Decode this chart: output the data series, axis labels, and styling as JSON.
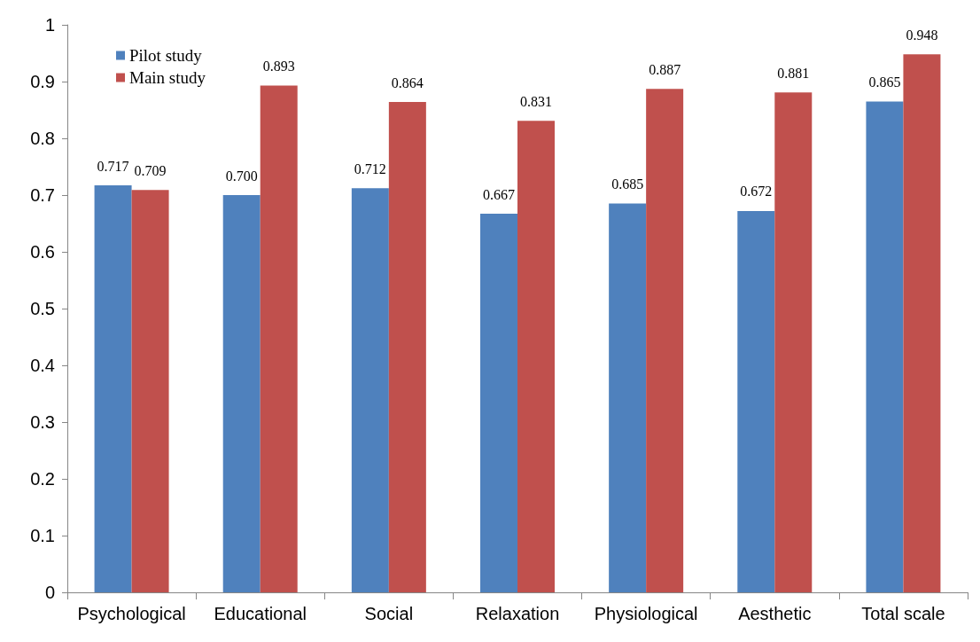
{
  "chart_data": {
    "type": "bar",
    "categories": [
      "Psychological",
      "Educational",
      "Social",
      "Relaxation",
      "Physiological",
      "Aesthetic",
      "Total scale"
    ],
    "series": [
      {
        "name": "Pilot study",
        "color": "#4f81bd",
        "values": [
          0.717,
          0.7,
          0.712,
          0.667,
          0.685,
          0.672,
          0.865
        ],
        "value_labels": [
          "0.717",
          "0.700",
          "0.712",
          "0.667",
          "0.685",
          "0.672",
          "0.865"
        ]
      },
      {
        "name": "Main study",
        "color": "#c0504d",
        "values": [
          0.709,
          0.893,
          0.864,
          0.831,
          0.887,
          0.881,
          0.948
        ],
        "value_labels": [
          "0.709",
          "0.893",
          "0.864",
          "0.831",
          "0.887",
          "0.881",
          "0.948"
        ]
      }
    ],
    "ylim": [
      0,
      1
    ],
    "yticks": [
      0,
      0.1,
      0.2,
      0.3,
      0.4,
      0.5,
      0.6,
      0.7,
      0.8,
      0.9,
      1
    ],
    "legend": "top left"
  }
}
